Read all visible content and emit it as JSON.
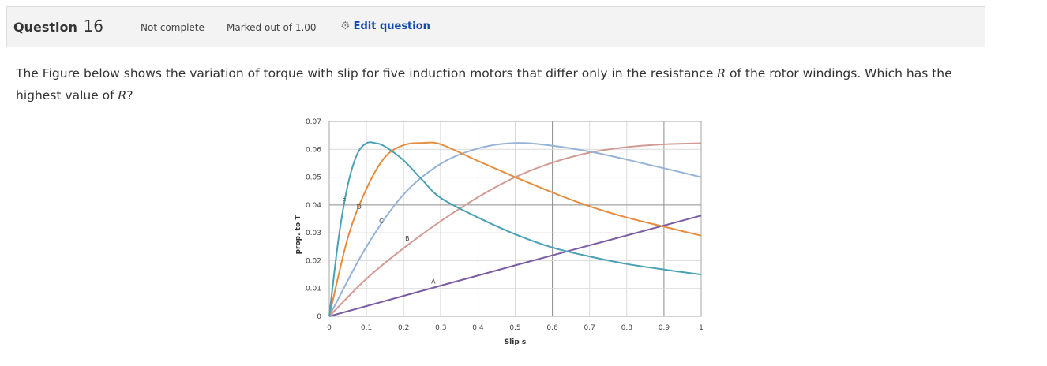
{
  "question": {
    "label": "Question",
    "number": "16",
    "state": "Not complete",
    "grade": "Marked out of 1.00",
    "edit_label": "Edit question",
    "edit_icon": "gear-icon",
    "text_before_R1": "The Figure below shows the variation of torque with slip for five induction motors that differ only in the resistance ",
    "R1": "R",
    "text_between": " of the rotor windings. Which has the highest value of ",
    "R2": "R",
    "text_after": "?"
  },
  "chart_data": {
    "type": "line",
    "xlabel": "Slip s",
    "ylabel": "prop. to T",
    "xlim": [
      0,
      1
    ],
    "ylim": [
      0,
      0.07
    ],
    "x_ticks": [
      "0",
      "0.1",
      "0.2",
      "0.3",
      "0.4",
      "0.5",
      "0.6",
      "0.7",
      "0.8",
      "0.9",
      "1"
    ],
    "y_ticks": [
      "0",
      "0.01",
      "0.02",
      "0.03",
      "0.04",
      "0.05",
      "0.06",
      "0.07"
    ],
    "grid": true,
    "series": [
      {
        "name": "A",
        "color": "#7a5ba3",
        "x": [
          0,
          0.5,
          1
        ],
        "y": [
          0,
          0.0183,
          0.0362
        ]
      },
      {
        "name": "B",
        "color": "#d29a92",
        "x": [
          0,
          0.1,
          0.2,
          0.3,
          0.4,
          0.5,
          0.6,
          0.7,
          0.8,
          0.9,
          1
        ],
        "y": [
          0,
          0.0135,
          0.0245,
          0.0342,
          0.0428,
          0.05,
          0.0552,
          0.0588,
          0.0608,
          0.0618,
          0.0622
        ]
      },
      {
        "name": "C",
        "color": "#95b3d7",
        "x": [
          0,
          0.1,
          0.2,
          0.3,
          0.4,
          0.5,
          0.6,
          0.7,
          0.8,
          0.9,
          1
        ],
        "y": [
          0,
          0.025,
          0.0438,
          0.0548,
          0.0603,
          0.0623,
          0.0613,
          0.0592,
          0.0563,
          0.0532,
          0.05
        ]
      },
      {
        "name": "D",
        "color": "#e48d3e",
        "x": [
          0,
          0.05,
          0.1,
          0.15,
          0.2,
          0.25,
          0.3,
          0.4,
          0.5,
          0.6,
          0.7,
          0.8,
          0.9,
          1
        ],
        "y": [
          0,
          0.0282,
          0.0458,
          0.0572,
          0.0615,
          0.0623,
          0.0618,
          0.0558,
          0.05,
          0.0445,
          0.0395,
          0.0355,
          0.0322,
          0.029
        ]
      },
      {
        "name": "E",
        "color": "#4aa0b5",
        "x": [
          0,
          0.025,
          0.05,
          0.075,
          0.1,
          0.125,
          0.15,
          0.2,
          0.25,
          0.3,
          0.4,
          0.5,
          0.6,
          0.7,
          0.8,
          0.9,
          1
        ],
        "y": [
          0,
          0.028,
          0.0472,
          0.0582,
          0.0622,
          0.0622,
          0.061,
          0.056,
          0.049,
          0.0425,
          0.0355,
          0.0295,
          0.0247,
          0.0215,
          0.0188,
          0.0168,
          0.015
        ]
      }
    ]
  }
}
